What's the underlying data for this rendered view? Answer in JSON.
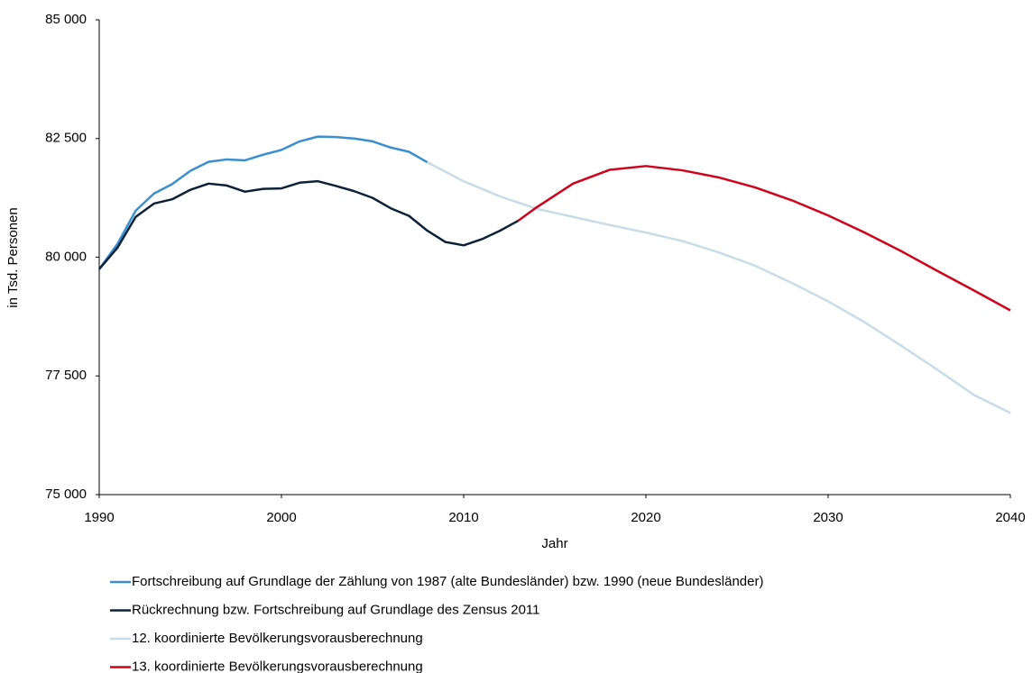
{
  "chart_data": {
    "type": "line",
    "x_label": "Jahr",
    "y_label": "in Tsd. Personen",
    "xlim": [
      1990,
      2040
    ],
    "xticks": [
      1990,
      2000,
      2010,
      2020,
      2030,
      2040
    ],
    "ylim": [
      75000,
      85000
    ],
    "yticks": [
      {
        "value": 75000,
        "label": "75 000"
      },
      {
        "value": 77500,
        "label": "77 500"
      },
      {
        "value": 80000,
        "label": "80 000"
      },
      {
        "value": 82500,
        "label": "82 500"
      },
      {
        "value": 85000,
        "label": "85 000"
      }
    ],
    "grid": false,
    "legend": "bottom",
    "series": [
      {
        "name": "12. koordinierte Bevölkerungsvorausberechnung",
        "color": "#c8dce8",
        "x": [
          2008,
          2009,
          2010,
          2012,
          2014,
          2016,
          2018,
          2020,
          2022,
          2024,
          2026,
          2028,
          2030,
          2032,
          2034,
          2036,
          2038,
          2040
        ],
        "values": [
          82000,
          81800,
          81600,
          81280,
          81020,
          80850,
          80680,
          80520,
          80340,
          80100,
          79820,
          79460,
          79070,
          78630,
          78140,
          77630,
          77100,
          76720
        ]
      },
      {
        "name": "13. koordinierte Bevölkerungsvorausberechnung",
        "color": "#d0021b",
        "x": [
          2013,
          2014,
          2016,
          2018,
          2020,
          2022,
          2024,
          2026,
          2028,
          2030,
          2032,
          2034,
          2036,
          2038,
          2040
        ],
        "values": [
          80770,
          81050,
          81550,
          81840,
          81920,
          81830,
          81680,
          81470,
          81200,
          80880,
          80520,
          80130,
          79710,
          79300,
          78880
        ]
      },
      {
        "name": "Fortschreibung auf Grundlage der Zählung von 1987 (alte Bundesländer) bzw. 1990 (neue Bundesländer)",
        "color": "#3a8fd0",
        "x": [
          1990,
          1991,
          1992,
          1993,
          1994,
          1995,
          1996,
          1997,
          1998,
          1999,
          2000,
          2001,
          2002,
          2003,
          2004,
          2005,
          2006,
          2007,
          2008
        ],
        "values": [
          79750,
          80280,
          80980,
          81340,
          81540,
          81820,
          82010,
          82060,
          82040,
          82160,
          82260,
          82440,
          82540,
          82530,
          82500,
          82440,
          82310,
          82220,
          82000
        ]
      },
      {
        "name": "Rückrechnung bzw. Fortschreibung auf Grundlage des Zensus 2011",
        "color": "#0d2236",
        "x": [
          1990,
          1991,
          1992,
          1993,
          1994,
          1995,
          1996,
          1997,
          1998,
          1999,
          2000,
          2001,
          2002,
          2003,
          2004,
          2005,
          2006,
          2007,
          2008,
          2009,
          2010,
          2011,
          2012,
          2013
        ],
        "values": [
          79750,
          80200,
          80850,
          81130,
          81220,
          81420,
          81550,
          81510,
          81380,
          81440,
          81450,
          81570,
          81600,
          81500,
          81390,
          81250,
          81030,
          80870,
          80560,
          80320,
          80250,
          80380,
          80560,
          80770
        ]
      }
    ]
  }
}
